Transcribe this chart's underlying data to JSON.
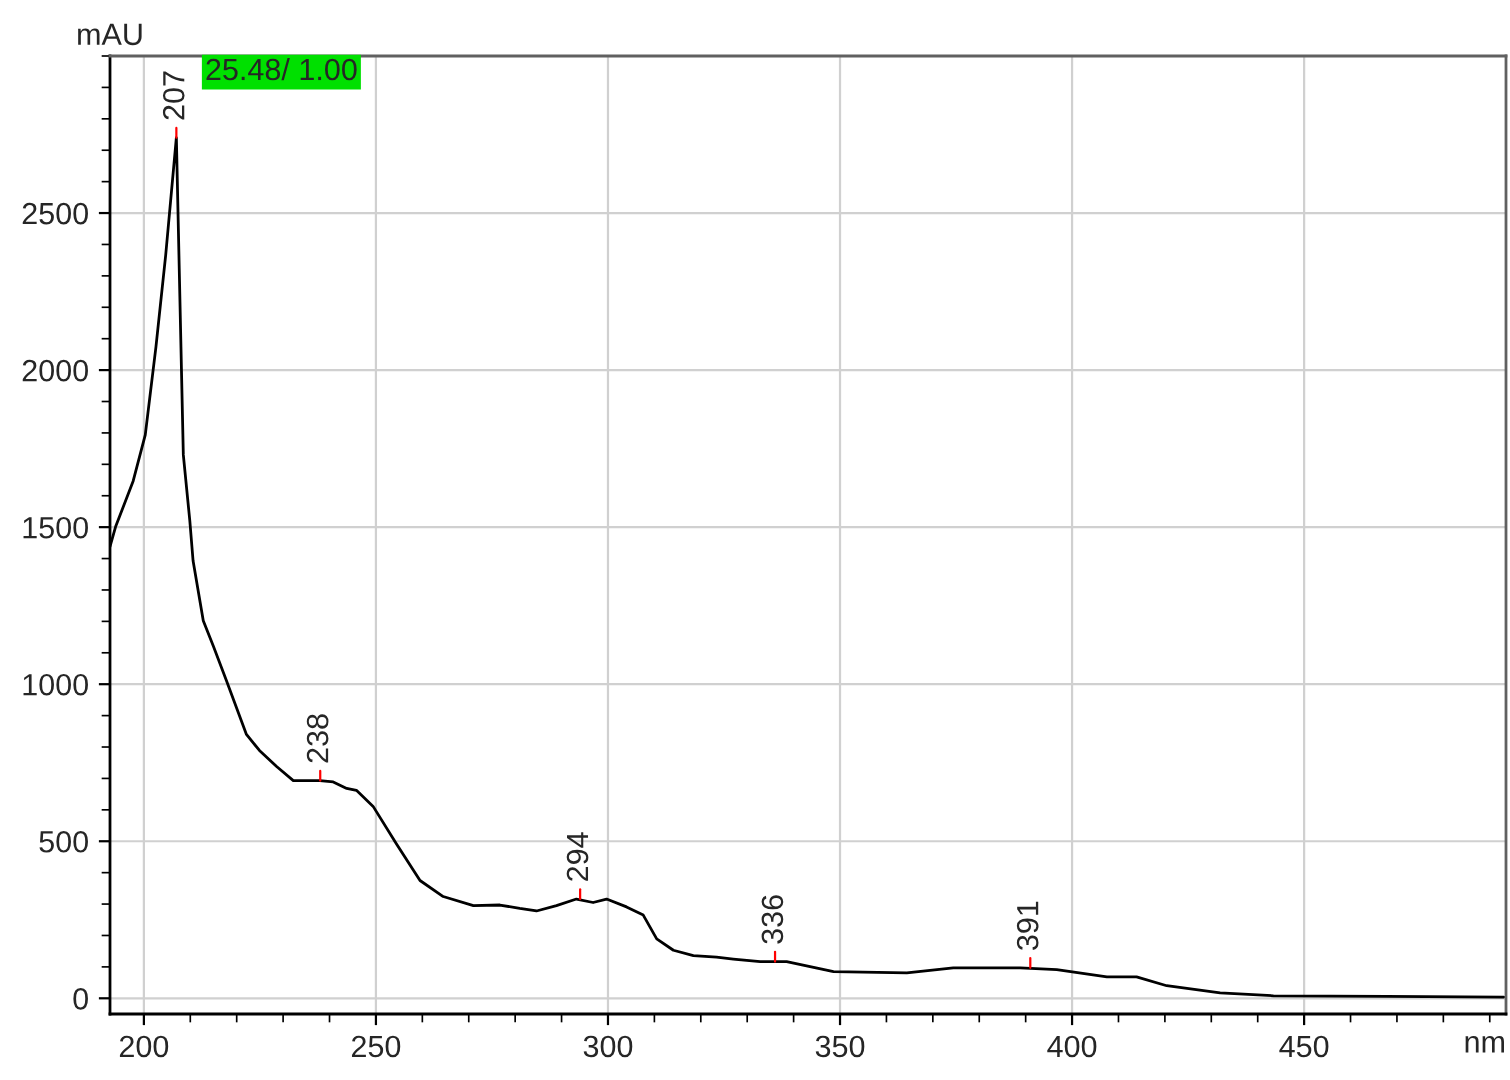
{
  "chart_data": {
    "type": "line",
    "xlabel": "nm",
    "ylabel": "mAU",
    "x": [
      192.7,
      193.9,
      197.7,
      200.3,
      202.6,
      204.7,
      207,
      208.5,
      209.9,
      210.6,
      212.8,
      215,
      217.8,
      222.1,
      224.9,
      228.6,
      232.2,
      237.9,
      240.8,
      243.7,
      245.8,
      249.4,
      254.4,
      259.5,
      264.5,
      271,
      276.7,
      281,
      284.6,
      288.9,
      293.2,
      296.8,
      299.7,
      304,
      307.6,
      310.5,
      314.1,
      318.4,
      323.4,
      327,
      332.8,
      338.5,
      348.6,
      364.4,
      374.4,
      388.8,
      396.7,
      407.5,
      413.9,
      420.4,
      431.9,
      443.4,
      467.8,
      493
    ],
    "series": [
      {
        "color": "#000000",
        "values": [
          1438,
          1501,
          1647,
          1794,
          2074,
          2366,
          2740,
          1730,
          1520,
          1393,
          1202,
          1120,
          1011,
          840,
          789,
          738,
          693,
          693,
          689,
          668,
          662,
          611,
          492,
          375,
          324,
          295,
          297,
          286,
          278,
          295,
          316,
          305,
          316,
          291,
          265,
          189,
          153,
          136,
          131,
          125,
          117,
          117,
          85,
          81,
          97,
          97,
          91,
          68,
          68,
          40,
          17,
          8,
          6,
          4
        ]
      }
    ],
    "xlim": [
      192.7,
      493.5
    ],
    "ylim": [
      -50,
      3000
    ],
    "xticks": [
      200,
      250,
      300,
      350,
      400,
      450
    ],
    "yticks": [
      0,
      500,
      1000,
      1500,
      2000,
      2500
    ],
    "grid": true,
    "legend": false,
    "marker": "none",
    "line_style": "solid",
    "annotations": [
      "25.48/ 1.00",
      {
        "text": "207",
        "x": 207,
        "y": 2740
      },
      {
        "text": "238",
        "x": 238,
        "y": 693
      },
      {
        "text": "294",
        "x": 294,
        "y": 316
      },
      {
        "text": "336",
        "x": 336,
        "y": 117
      },
      {
        "text": "391",
        "x": 391,
        "y": 97
      }
    ]
  }
}
